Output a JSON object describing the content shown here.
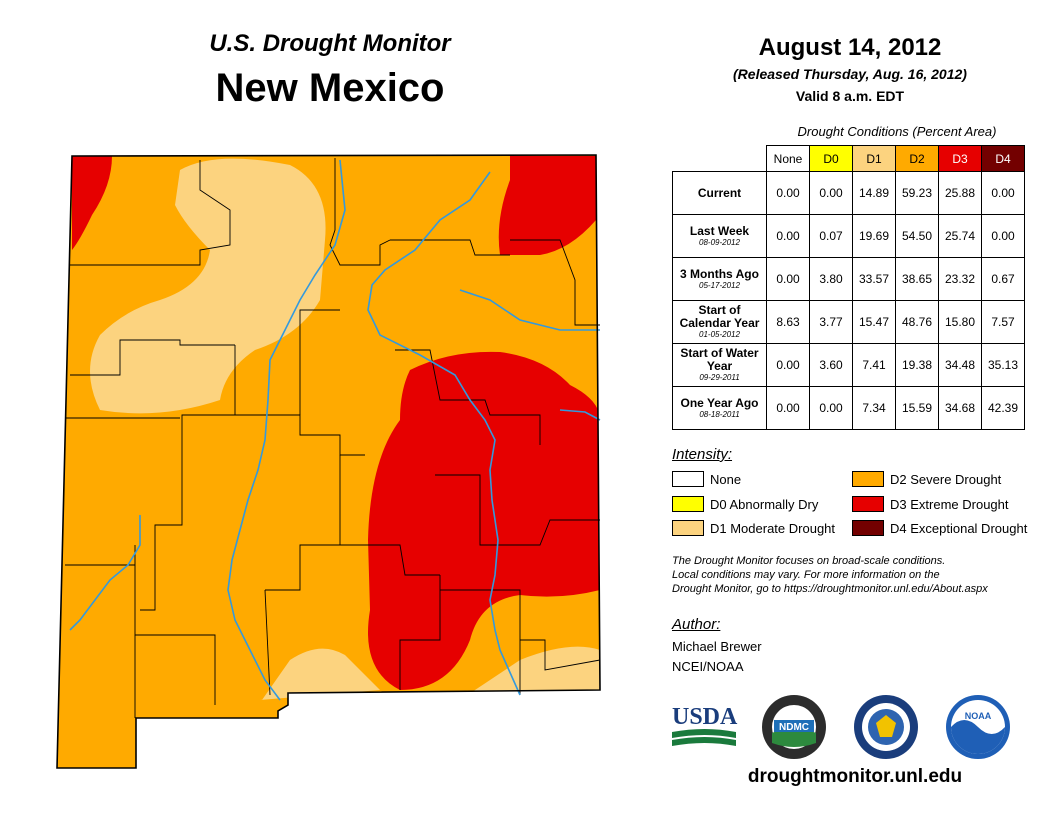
{
  "header": {
    "publication": "U.S. Drought Monitor",
    "state": "New Mexico",
    "date": "August 14, 2012",
    "released": "(Released Thursday, Aug. 16, 2012)",
    "valid": "Valid 8 a.m. EDT"
  },
  "table": {
    "caption": "Drought Conditions (Percent Area)",
    "columns": [
      {
        "label": "None",
        "color": "#ffffff",
        "text_color": "#000000"
      },
      {
        "label": "D0",
        "color": "#ffff00",
        "text_color": "#000000"
      },
      {
        "label": "D1",
        "color": "#fcd37f",
        "text_color": "#000000"
      },
      {
        "label": "D2",
        "color": "#ffaa00",
        "text_color": "#000000"
      },
      {
        "label": "D3",
        "color": "#e60000",
        "text_color": "#ffffff"
      },
      {
        "label": "D4",
        "color": "#730000",
        "text_color": "#ffffff"
      }
    ],
    "rows": [
      {
        "label": "Current",
        "sub": "",
        "values": [
          "0.00",
          "0.00",
          "14.89",
          "59.23",
          "25.88",
          "0.00"
        ]
      },
      {
        "label": "Last Week",
        "sub": "08-09-2012",
        "values": [
          "0.00",
          "0.07",
          "19.69",
          "54.50",
          "25.74",
          "0.00"
        ]
      },
      {
        "label": "3 Months Ago",
        "sub": "05-17-2012",
        "values": [
          "0.00",
          "3.80",
          "33.57",
          "38.65",
          "23.32",
          "0.67"
        ]
      },
      {
        "label": "Start of Calendar Year",
        "sub": "01-05-2012",
        "values": [
          "8.63",
          "3.77",
          "15.47",
          "48.76",
          "15.80",
          "7.57"
        ]
      },
      {
        "label": "Start of Water Year",
        "sub": "09-29-2011",
        "values": [
          "0.00",
          "3.60",
          "7.41",
          "19.38",
          "34.48",
          "35.13"
        ]
      },
      {
        "label": "One Year Ago",
        "sub": "08-18-2011",
        "values": [
          "0.00",
          "0.00",
          "7.34",
          "15.59",
          "34.68",
          "42.39"
        ]
      }
    ]
  },
  "legend": {
    "title": "Intensity:",
    "items": [
      {
        "label": "None",
        "color": "#ffffff"
      },
      {
        "label": "D0 Abnormally Dry",
        "color": "#ffff00"
      },
      {
        "label": "D1 Moderate Drought",
        "color": "#fcd37f"
      },
      {
        "label": "D2 Severe Drought",
        "color": "#ffaa00"
      },
      {
        "label": "D3 Extreme Drought",
        "color": "#e60000"
      },
      {
        "label": "D4 Exceptional Drought",
        "color": "#730000"
      }
    ]
  },
  "note": [
    "The Drought Monitor focuses on broad-scale conditions.",
    "Local conditions may vary. For more information on the",
    "Drought Monitor, go to https://droughtmonitor.unl.edu/About.aspx"
  ],
  "author": {
    "title": "Author:",
    "name": "Michael Brewer",
    "org": "NCEI/NOAA"
  },
  "logos": {
    "usda": "USDA",
    "ndmc": "NDMC",
    "noaa": "NOAA"
  },
  "website": "droughtmonitor.unl.edu",
  "map_colors": {
    "d1": "#fcd37f",
    "d2": "#ffaa00",
    "d3": "#e60000",
    "border": "#000000",
    "river": "#3399dd"
  }
}
